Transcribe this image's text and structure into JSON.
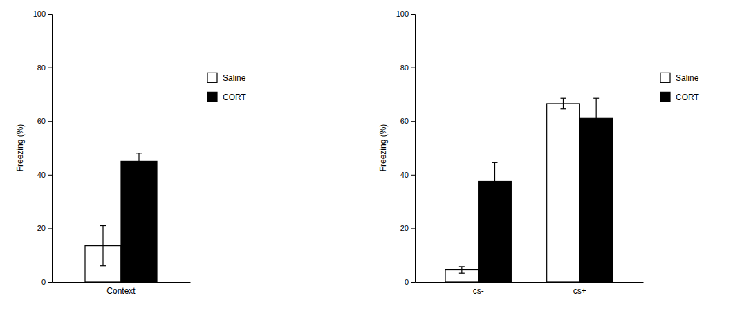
{
  "chart_data": [
    {
      "type": "bar",
      "categories": [
        "Context"
      ],
      "series": [
        {
          "name": "Saline",
          "color": "#ffffff",
          "values": [
            13.5
          ],
          "errors": [
            7.5
          ]
        },
        {
          "name": "CORT",
          "color": "#000000",
          "values": [
            45.0
          ],
          "errors": [
            3.0
          ]
        }
      ],
      "ylabel": "Freezing (%)",
      "ylim": [
        0,
        100
      ],
      "yticks": [
        0,
        20,
        40,
        60,
        80,
        100
      ],
      "grid": false,
      "legend": "right"
    },
    {
      "type": "bar",
      "categories": [
        "cs-",
        "cs+"
      ],
      "series": [
        {
          "name": "Saline",
          "color": "#ffffff",
          "values": [
            4.5,
            66.5
          ],
          "errors": [
            1.2,
            2.0
          ]
        },
        {
          "name": "CORT",
          "color": "#000000",
          "values": [
            37.5,
            61.0
          ],
          "errors": [
            7.0,
            7.5
          ]
        }
      ],
      "ylabel": "Freezing (%)",
      "ylim": [
        0,
        100
      ],
      "yticks": [
        0,
        20,
        40,
        60,
        80,
        100
      ],
      "grid": false,
      "legend": "right"
    }
  ]
}
